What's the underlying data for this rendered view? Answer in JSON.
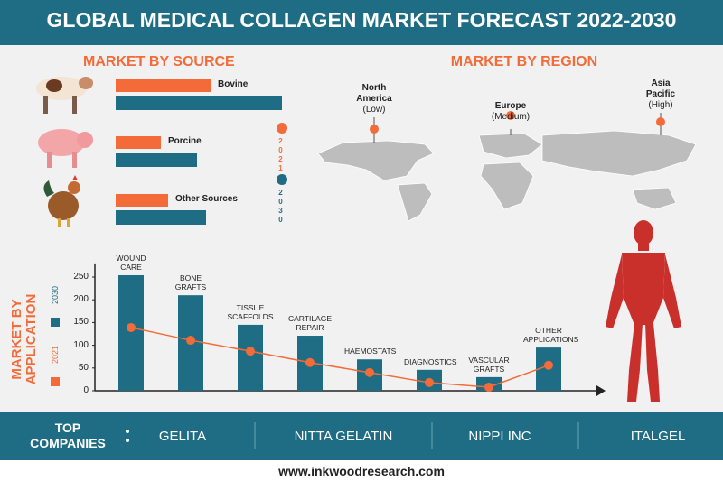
{
  "header": {
    "title": "GLOBAL MEDICAL COLLAGEN MARKET FORECAST 2022-2030"
  },
  "chart_data": [
    {
      "type": "hbar",
      "title": "MARKET BY SOURCE",
      "categories": [
        "Bovine",
        "Porcine",
        "Other Sources"
      ],
      "xlim": [
        0,
        200
      ],
      "series": [
        {
          "name": "2021",
          "color": "#f26b38",
          "values": [
            105,
            50,
            58
          ]
        },
        {
          "name": "2030",
          "color": "#1e6d84",
          "values": [
            184,
            90,
            100
          ]
        }
      ]
    },
    {
      "type": "bar_line",
      "title": "MARKET BY APPLICATION",
      "categories": [
        "WOUND CARE",
        "BONE GRAFTS",
        "TISSUE SCAFFOLDS",
        "CARTILAGE REPAIR",
        "HAEMOSTATS",
        "DIAGNOSTICS",
        "VASCULAR GRAFTS",
        "OTHER APPLICATIONS"
      ],
      "ylim": [
        0,
        280
      ],
      "yticks": [
        0,
        50,
        100,
        150,
        200,
        250
      ],
      "series": [
        {
          "name": "2030",
          "color": "#1e6d84",
          "type": "bar",
          "values": [
            254,
            210,
            145,
            121,
            69,
            46,
            30,
            95
          ]
        },
        {
          "name": "2021",
          "color": "#f26b38",
          "type": "line",
          "values": [
            139,
            111,
            87,
            62,
            40,
            18,
            8,
            56
          ]
        }
      ]
    }
  ],
  "region": {
    "title": "MARKET BY REGION",
    "regions": [
      {
        "name": "North America",
        "level": "(Low)"
      },
      {
        "name": "Europe",
        "level": "(Medium)"
      },
      {
        "name": "Asia Pacific",
        "level": "(High)"
      }
    ]
  },
  "companies": {
    "label": "TOP COMPANIES",
    "items": [
      "GELITA",
      "NITTA GELATIN",
      "NIPPI INC",
      "ITALGEL"
    ]
  },
  "footer": {
    "website": "www.inkwoodresearch.com"
  }
}
